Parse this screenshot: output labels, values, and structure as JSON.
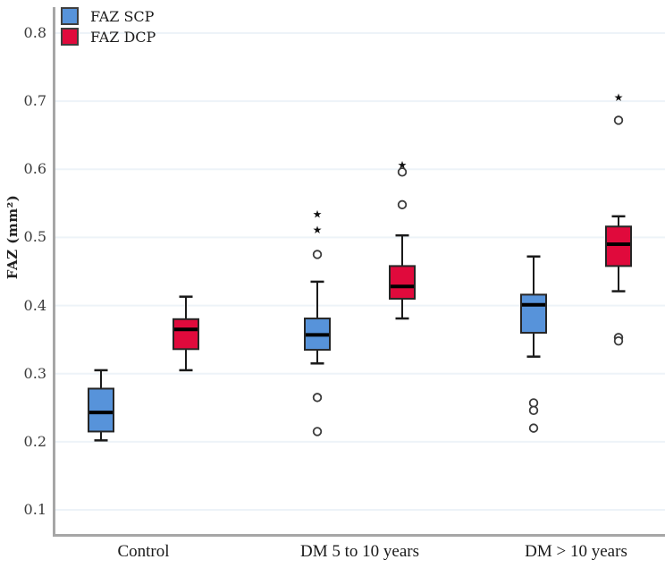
{
  "figure": {
    "background": "#ffffff"
  },
  "axis": {
    "line_color": "#a6a6a6",
    "grid_color": "#edf3f8",
    "tick_color": "#3a3a3a"
  },
  "chart_data": {
    "type": "box",
    "title": "",
    "ylabel": "FAZ (mm²)",
    "xlabel": "",
    "ylim": [
      0.06,
      0.84
    ],
    "yticks": [
      0.1,
      0.2,
      0.3,
      0.4,
      0.5,
      0.6,
      0.7,
      0.8
    ],
    "ytick_labels": [
      "0.1",
      "0.2",
      "0.3",
      "0.4",
      "0.5",
      "0.6",
      "0.7",
      "0.8"
    ],
    "categories": [
      "Control",
      "DM 5 to 10 years",
      "DM > 10 years"
    ],
    "grid": "horizontal light gridlines at each 0.1",
    "legend_position": "top-left",
    "marker_legend": {
      "circle": "outlier",
      "star": "extreme outlier"
    },
    "series": [
      {
        "name": "FAZ SCP",
        "color": "#5793da",
        "data": [
          {
            "low": 0.202,
            "q1": 0.215,
            "median": 0.243,
            "q3": 0.278,
            "high": 0.305,
            "outliers_circle": [],
            "outliers_star": []
          },
          {
            "low": 0.315,
            "q1": 0.335,
            "median": 0.357,
            "q3": 0.381,
            "high": 0.435,
            "outliers_circle": [
              0.475,
              0.265,
              0.215
            ],
            "outliers_star": [
              0.535,
              0.512
            ]
          },
          {
            "low": 0.325,
            "q1": 0.36,
            "median": 0.401,
            "q3": 0.416,
            "high": 0.472,
            "outliers_circle": [
              0.257,
              0.246,
              0.22
            ],
            "outliers_star": []
          }
        ]
      },
      {
        "name": "FAZ DCP",
        "color": "#e00a3c",
        "data": [
          {
            "low": 0.305,
            "q1": 0.336,
            "median": 0.365,
            "q3": 0.38,
            "high": 0.413,
            "outliers_circle": [],
            "outliers_star": []
          },
          {
            "low": 0.381,
            "q1": 0.41,
            "median": 0.428,
            "q3": 0.458,
            "high": 0.503,
            "outliers_circle": [
              0.596,
              0.548
            ],
            "outliers_star": [
              0.607
            ]
          },
          {
            "low": 0.421,
            "q1": 0.458,
            "median": 0.49,
            "q3": 0.516,
            "high": 0.531,
            "outliers_circle": [
              0.672,
              0.353,
              0.348
            ],
            "outliers_star": [
              0.706
            ]
          }
        ]
      }
    ]
  }
}
